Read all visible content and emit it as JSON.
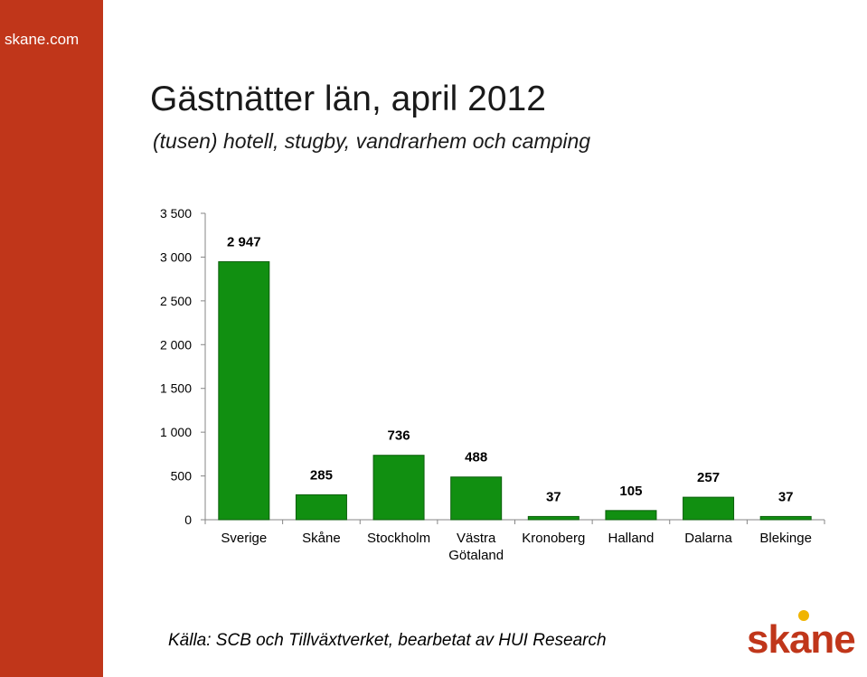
{
  "site": {
    "name": "skane.com"
  },
  "header": {
    "title": "Gästnätter län, april 2012",
    "subtitle": "(tusen) hotell, stugby, vandrarhem och camping"
  },
  "footer": {
    "source": "Källa: SCB och Tillväxtverket, bearbetat av HUI Research"
  },
  "logo": {
    "text": "skane",
    "colors": {
      "text": "#c0361a",
      "dot": "#f0b400"
    }
  },
  "colors": {
    "sidebar": "#c0361a",
    "bar": "#118f11",
    "bar_border": "#0b5e0b"
  },
  "chart_data": {
    "type": "bar",
    "categories": [
      "Sverige",
      "Skåne",
      "Stockholm",
      "Västra Götaland",
      "Kronoberg",
      "Halland",
      "Dalarna",
      "Blekinge"
    ],
    "category_lines": [
      [
        "Sverige"
      ],
      [
        "Skåne"
      ],
      [
        "Stockholm"
      ],
      [
        "Västra",
        "Götaland"
      ],
      [
        "Kronoberg"
      ],
      [
        "Halland"
      ],
      [
        "Dalarna"
      ],
      [
        "Blekinge"
      ]
    ],
    "values": [
      2947,
      285,
      736,
      488,
      37,
      105,
      257,
      37
    ],
    "data_labels": [
      "2 947",
      "285",
      "736",
      "488",
      "37",
      "105",
      "257",
      "37"
    ],
    "yticks": [
      0,
      500,
      1000,
      1500,
      2000,
      2500,
      3000,
      3500
    ],
    "ytick_labels": [
      "0",
      "500",
      "1 000",
      "1 500",
      "2 000",
      "2 500",
      "3 000",
      "3 500"
    ],
    "ylim": [
      0,
      3500
    ],
    "grid": false,
    "legend": "none"
  }
}
